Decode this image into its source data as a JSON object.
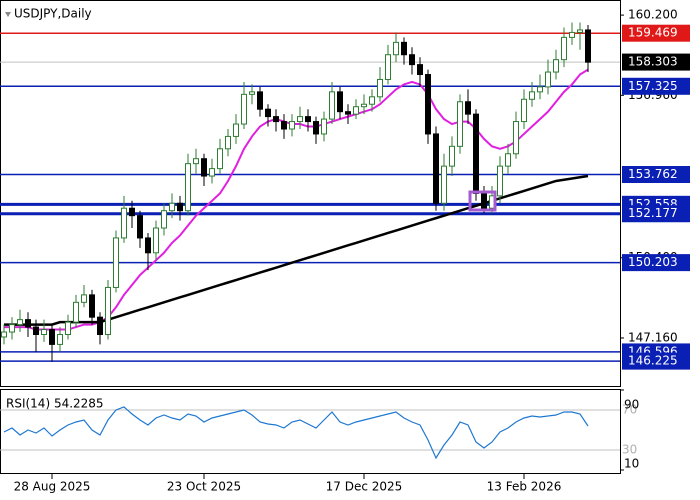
{
  "chart_data": {
    "type": "candlestick",
    "title": "USDJPY,Daily",
    "categories": [
      null,
      null,
      null,
      null,
      null,
      null,
      "28 Aug 2025",
      null,
      null,
      null,
      null,
      null,
      null,
      null,
      null,
      null,
      null,
      null,
      null,
      null,
      null,
      null,
      null,
      null,
      null,
      "23 Oct 2025",
      null,
      null,
      null,
      null,
      null,
      null,
      null,
      null,
      null,
      null,
      null,
      null,
      null,
      null,
      null,
      null,
      null,
      null,
      null,
      "17 Dec 2025",
      null,
      null,
      null,
      null,
      null,
      null,
      null,
      null,
      null,
      null,
      null,
      null,
      null,
      null,
      null,
      null,
      null,
      null,
      null,
      "13 Feb 2026",
      null,
      null,
      null,
      null,
      null,
      null,
      null,
      null
    ],
    "open": [
      147.2,
      147.4,
      147.7,
      147.9,
      147.6,
      147.3,
      147.5,
      146.9,
      147.3,
      147.8,
      148.6,
      148.9,
      148.0,
      147.3,
      149.2,
      151.2,
      152.4,
      152.1,
      151.2,
      150.6,
      151.6,
      152.3,
      152.6,
      152.3,
      154.2,
      154.4,
      153.7,
      154.0,
      154.8,
      155.3,
      155.8,
      157.0,
      157.1,
      156.4,
      156.1,
      155.9,
      155.6,
      155.9,
      156.1,
      155.9,
      155.4,
      156.0,
      157.1,
      156.3,
      156.2,
      156.5,
      156.6,
      156.9,
      157.6,
      158.6,
      159.1,
      158.6,
      158.2,
      157.8,
      155.4,
      152.6,
      154.1,
      154.9,
      156.7,
      156.2,
      153.0,
      152.4,
      152.9,
      154.1,
      154.6,
      155.9,
      156.8,
      157.1,
      157.3,
      157.9,
      158.4,
      159.3,
      159.5,
      159.6
    ],
    "high": [
      147.7,
      148.0,
      148.3,
      148.2,
      147.9,
      147.9,
      147.7,
      147.6,
      148.1,
      148.9,
      149.3,
      149.1,
      148.2,
      149.5,
      151.5,
      152.9,
      152.7,
      152.3,
      151.4,
      151.9,
      152.6,
      153.0,
      152.9,
      154.6,
      154.8,
      154.6,
      154.4,
      155.2,
      155.6,
      156.2,
      157.5,
      157.4,
      157.3,
      156.6,
      156.4,
      156.2,
      156.2,
      156.5,
      156.4,
      156.1,
      156.3,
      157.5,
      157.3,
      156.6,
      156.8,
      157.0,
      157.2,
      158.1,
      159.0,
      159.5,
      159.3,
      158.9,
      158.5,
      158.0,
      155.7,
      154.6,
      155.3,
      157.0,
      157.2,
      156.4,
      153.3,
      153.3,
      154.5,
      155.0,
      156.3,
      157.2,
      157.5,
      157.8,
      158.4,
      158.8,
      159.7,
      159.9,
      159.9,
      159.8
    ],
    "low": [
      146.9,
      147.1,
      147.4,
      147.2,
      146.6,
      147.0,
      146.2,
      146.6,
      147.1,
      147.6,
      148.4,
      147.7,
      146.9,
      147.1,
      149.0,
      151.0,
      151.6,
      150.8,
      149.9,
      150.3,
      151.3,
      152.0,
      151.9,
      152.1,
      153.8,
      153.3,
      153.4,
      153.8,
      154.5,
      155.0,
      155.6,
      156.6,
      156.1,
      155.7,
      155.5,
      155.2,
      155.3,
      155.6,
      155.5,
      155.0,
      155.1,
      155.8,
      156.0,
      155.8,
      156.0,
      156.2,
      156.3,
      156.7,
      157.4,
      158.3,
      158.2,
      157.8,
      157.3,
      155.0,
      152.3,
      152.3,
      153.7,
      154.6,
      155.8,
      152.7,
      152.2,
      152.2,
      152.6,
      153.8,
      154.4,
      155.6,
      156.5,
      156.8,
      157.0,
      157.6,
      158.1,
      159.0,
      158.8,
      157.9
    ],
    "close": [
      147.4,
      147.7,
      147.9,
      147.6,
      147.3,
      147.5,
      146.9,
      147.3,
      147.8,
      148.6,
      148.9,
      148.0,
      147.3,
      149.2,
      151.2,
      152.4,
      152.1,
      151.2,
      150.6,
      151.6,
      152.3,
      152.6,
      152.3,
      154.2,
      154.4,
      153.7,
      154.0,
      154.8,
      155.3,
      155.8,
      157.0,
      157.1,
      156.4,
      156.1,
      155.9,
      155.6,
      155.9,
      156.1,
      155.9,
      155.4,
      156.0,
      157.1,
      156.3,
      156.2,
      156.5,
      156.6,
      156.9,
      157.6,
      158.6,
      159.1,
      158.6,
      158.2,
      157.8,
      155.4,
      152.6,
      154.1,
      154.9,
      156.7,
      156.2,
      153.0,
      152.4,
      152.9,
      154.1,
      154.6,
      155.9,
      156.8,
      157.1,
      157.3,
      157.9,
      158.4,
      159.3,
      159.5,
      159.6,
      158.3
    ],
    "up_color": "#2e7d32",
    "down_color": "#000000",
    "overlays": [
      {
        "color": "#e11fe1",
        "values": [
          147.6,
          147.6,
          147.6,
          147.6,
          147.5,
          147.5,
          147.5,
          147.5,
          147.5,
          147.6,
          147.7,
          147.7,
          147.8,
          148.0,
          148.4,
          148.9,
          149.3,
          149.7,
          150.0,
          150.3,
          150.6,
          151.0,
          151.3,
          151.7,
          152.1,
          152.4,
          152.7,
          153.0,
          153.5,
          154.1,
          154.8,
          155.3,
          155.7,
          155.9,
          156.0,
          155.9,
          155.8,
          155.8,
          155.7,
          155.7,
          155.8,
          155.9,
          156.0,
          156.1,
          156.2,
          156.3,
          156.4,
          156.6,
          156.9,
          157.2,
          157.4,
          157.5,
          157.4,
          157.0,
          156.4,
          156.0,
          155.8,
          155.9,
          155.9,
          155.6,
          155.2,
          154.9,
          154.8,
          154.9,
          155.1,
          155.4,
          155.7,
          156.0,
          156.3,
          156.7,
          157.1,
          157.4,
          157.8,
          158.0
        ]
      },
      {
        "color": "#000000",
        "values": [
          147.7,
          147.7,
          147.7,
          147.7,
          147.7,
          147.7,
          147.7,
          147.8,
          147.8,
          147.8,
          147.8,
          147.8,
          147.8,
          147.9,
          148.0,
          148.1,
          148.2,
          148.3,
          148.4,
          148.5,
          148.6,
          148.7,
          148.8,
          148.9,
          149.0,
          149.1,
          149.2,
          149.3,
          149.4,
          149.5,
          149.6,
          149.7,
          149.8,
          149.9,
          150.0,
          150.1,
          150.2,
          150.3,
          150.4,
          150.5,
          150.6,
          150.7,
          150.8,
          150.9,
          151.0,
          151.1,
          151.2,
          151.3,
          151.4,
          151.5,
          151.6,
          151.7,
          151.8,
          151.9,
          152.0,
          152.1,
          152.2,
          152.3,
          152.4,
          152.5,
          152.6,
          152.7,
          152.8,
          152.9,
          153.0,
          153.1,
          153.2,
          153.3,
          153.4,
          153.5,
          153.55,
          153.6,
          153.65,
          153.7
        ]
      }
    ],
    "ylim": [
      145.22,
      160.81
    ],
    "yticks": [
      {
        "value": 160.2,
        "label": "160.200"
      },
      {
        "value": 156.96,
        "label": "156.960"
      },
      {
        "value": 150.4,
        "label": "150.400"
      },
      {
        "value": 147.16,
        "label": "147.160"
      }
    ],
    "levels": [
      {
        "value": 159.469,
        "color": "#e01818"
      },
      {
        "value": 157.325,
        "color": "#0a1fb4"
      },
      {
        "value": 153.762,
        "color": "#0a1fb4"
      },
      {
        "value": 152.558,
        "color": "#0a1fb4"
      },
      {
        "value": 152.177,
        "color": "#0a1fb4"
      },
      {
        "value": 150.203,
        "color": "#0a1fb4"
      },
      {
        "value": 146.596,
        "color": "#0a1fb4"
      },
      {
        "value": 146.225,
        "color": "#0a1fb4"
      }
    ],
    "current_price": 158.303,
    "rsi": {
      "title": "RSI(14) 54.2285",
      "color": "#1e78d2",
      "values": [
        48,
        52,
        45,
        50,
        47,
        52,
        44,
        50,
        55,
        58,
        60,
        50,
        45,
        60,
        70,
        73,
        66,
        60,
        55,
        62,
        65,
        62,
        60,
        66,
        64,
        58,
        62,
        64,
        66,
        68,
        70,
        65,
        58,
        56,
        55,
        52,
        58,
        60,
        56,
        52,
        60,
        68,
        58,
        55,
        58,
        60,
        62,
        64,
        66,
        68,
        62,
        58,
        55,
        40,
        22,
        35,
        45,
        58,
        55,
        38,
        32,
        38,
        48,
        52,
        58,
        62,
        64,
        63,
        64,
        65,
        68,
        68,
        66,
        54
      ],
      "ylim": [
        6,
        91
      ],
      "yticks": [
        90,
        10
      ],
      "levels": [
        70,
        30
      ]
    }
  }
}
